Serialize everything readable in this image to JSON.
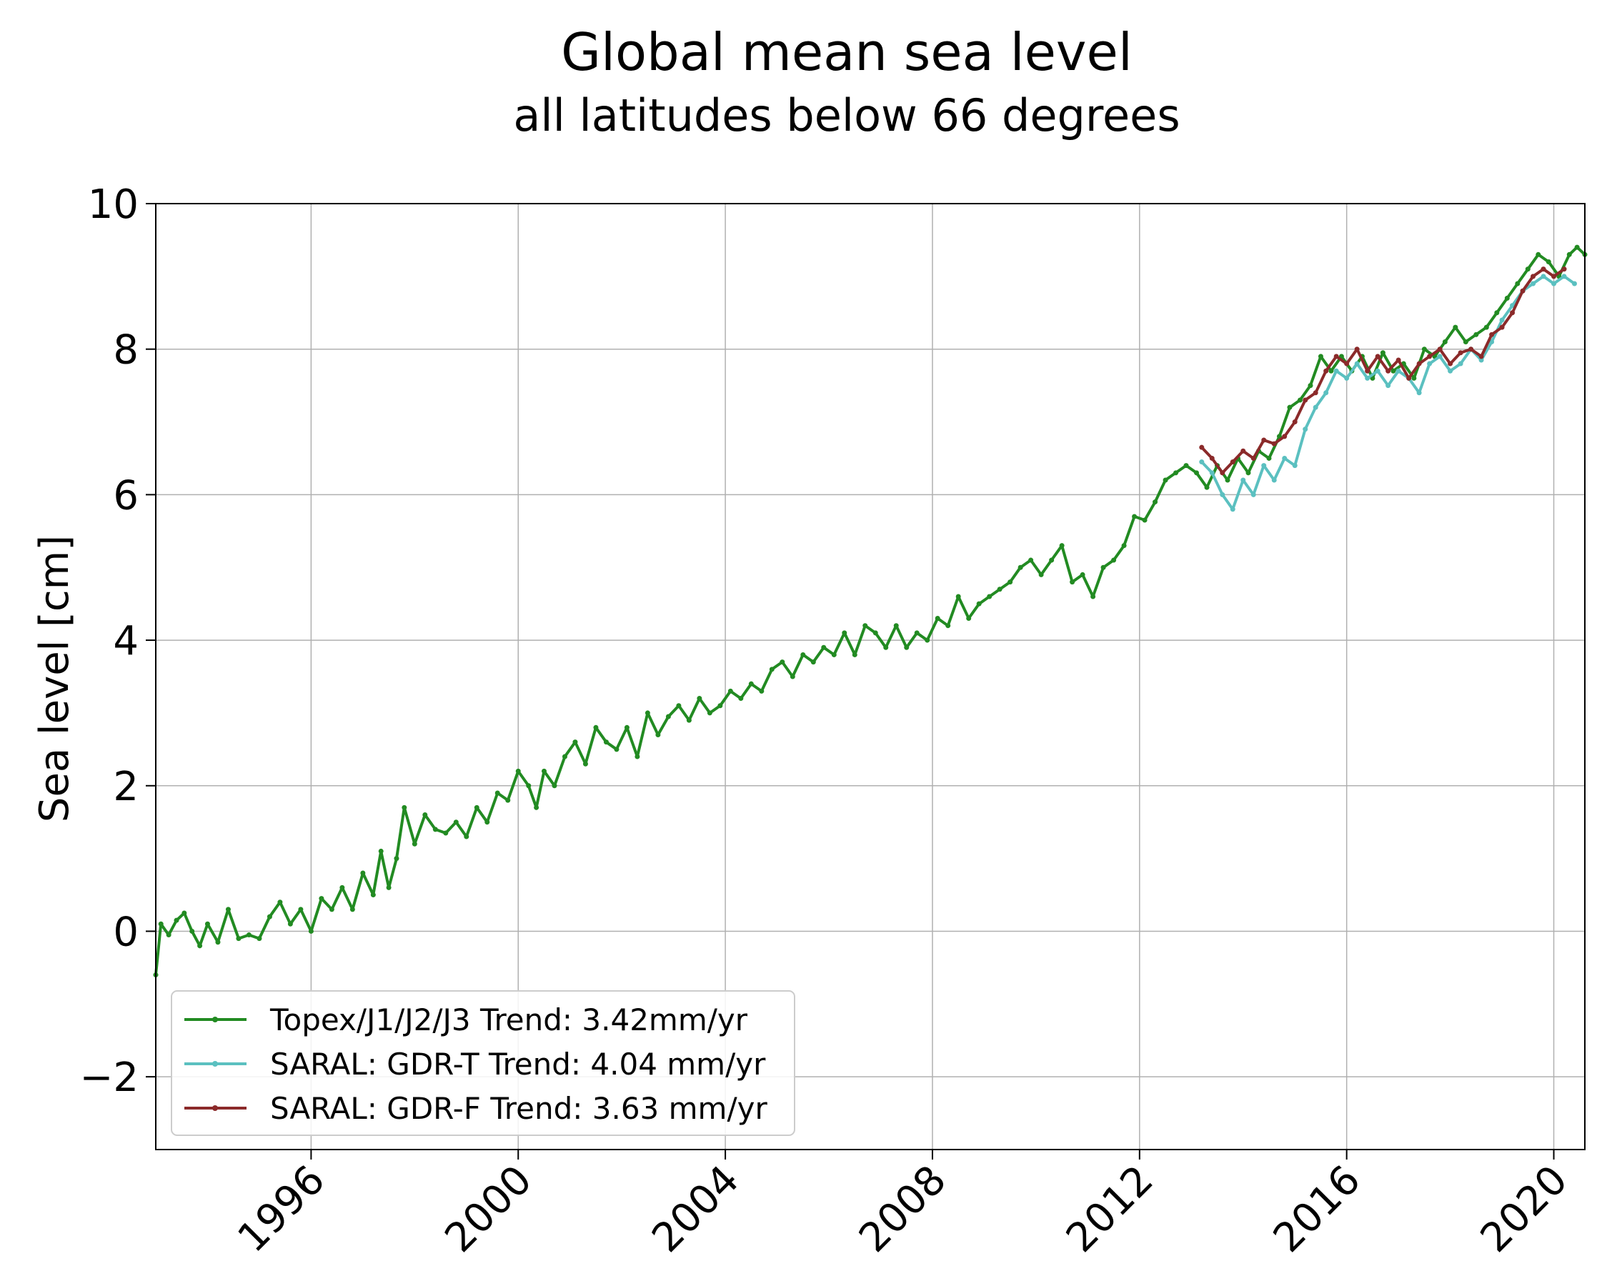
{
  "chart_data": {
    "type": "line",
    "title": "Global mean sea level",
    "subtitle": "all latitudes below 66 degrees",
    "xlabel": "",
    "ylabel": "Sea level [cm]",
    "xlim": [
      1993.0,
      2020.6
    ],
    "ylim": [
      -3,
      10
    ],
    "x_ticks": [
      {
        "value": 1996,
        "label": "1996"
      },
      {
        "value": 2000,
        "label": "2000"
      },
      {
        "value": 2004,
        "label": "2004"
      },
      {
        "value": 2008,
        "label": "2008"
      },
      {
        "value": 2012,
        "label": "2012"
      },
      {
        "value": 2016,
        "label": "2016"
      },
      {
        "value": 2020,
        "label": "2020"
      }
    ],
    "y_ticks": [
      {
        "value": -2,
        "label": "−2"
      },
      {
        "value": 0,
        "label": "0"
      },
      {
        "value": 2,
        "label": "2"
      },
      {
        "value": 4,
        "label": "4"
      },
      {
        "value": 6,
        "label": "6"
      },
      {
        "value": 8,
        "label": "8"
      },
      {
        "value": 10,
        "label": "10"
      }
    ],
    "grid": true,
    "legend_position": "lower-left",
    "series": [
      {
        "name": "Topex/J1/J2/J3 Trend: 3.42mm/yr",
        "color": "#228B22",
        "x": [
          1993.0,
          1993.1,
          1993.25,
          1993.4,
          1993.55,
          1993.7,
          1993.85,
          1994.0,
          1994.2,
          1994.4,
          1994.6,
          1994.8,
          1995.0,
          1995.2,
          1995.4,
          1995.6,
          1995.8,
          1996.0,
          1996.2,
          1996.4,
          1996.6,
          1996.8,
          1997.0,
          1997.2,
          1997.35,
          1997.5,
          1997.65,
          1997.8,
          1998.0,
          1998.2,
          1998.4,
          1998.6,
          1998.8,
          1999.0,
          1999.2,
          1999.4,
          1999.6,
          1999.8,
          2000.0,
          2000.2,
          2000.35,
          2000.5,
          2000.7,
          2000.9,
          2001.1,
          2001.3,
          2001.5,
          2001.7,
          2001.9,
          2002.1,
          2002.3,
          2002.5,
          2002.7,
          2002.9,
          2003.1,
          2003.3,
          2003.5,
          2003.7,
          2003.9,
          2004.1,
          2004.3,
          2004.5,
          2004.7,
          2004.9,
          2005.1,
          2005.3,
          2005.5,
          2005.7,
          2005.9,
          2006.1,
          2006.3,
          2006.5,
          2006.7,
          2006.9,
          2007.1,
          2007.3,
          2007.5,
          2007.7,
          2007.9,
          2008.1,
          2008.3,
          2008.5,
          2008.7,
          2008.9,
          2009.1,
          2009.3,
          2009.5,
          2009.7,
          2009.9,
          2010.1,
          2010.3,
          2010.5,
          2010.7,
          2010.9,
          2011.1,
          2011.3,
          2011.5,
          2011.7,
          2011.9,
          2012.1,
          2012.3,
          2012.5,
          2012.7,
          2012.9,
          2013.1,
          2013.3,
          2013.5,
          2013.7,
          2013.9,
          2014.1,
          2014.3,
          2014.5,
          2014.7,
          2014.9,
          2015.1,
          2015.3,
          2015.5,
          2015.7,
          2015.9,
          2016.1,
          2016.3,
          2016.5,
          2016.7,
          2016.9,
          2017.1,
          2017.3,
          2017.5,
          2017.7,
          2017.9,
          2018.1,
          2018.3,
          2018.5,
          2018.7,
          2018.9,
          2019.1,
          2019.3,
          2019.5,
          2019.7,
          2019.9,
          2020.1,
          2020.3,
          2020.45,
          2020.6
        ],
        "y": [
          -0.6,
          0.1,
          -0.05,
          0.15,
          0.25,
          0.0,
          -0.2,
          0.1,
          -0.15,
          0.3,
          -0.1,
          -0.05,
          -0.1,
          0.2,
          0.4,
          0.1,
          0.3,
          0.0,
          0.45,
          0.3,
          0.6,
          0.3,
          0.8,
          0.5,
          1.1,
          0.6,
          1.0,
          1.7,
          1.2,
          1.6,
          1.4,
          1.35,
          1.5,
          1.3,
          1.7,
          1.5,
          1.9,
          1.8,
          2.2,
          2.0,
          1.7,
          2.2,
          2.0,
          2.4,
          2.6,
          2.3,
          2.8,
          2.6,
          2.5,
          2.8,
          2.4,
          3.0,
          2.7,
          2.95,
          3.1,
          2.9,
          3.2,
          3.0,
          3.1,
          3.3,
          3.2,
          3.4,
          3.3,
          3.6,
          3.7,
          3.5,
          3.8,
          3.7,
          3.9,
          3.8,
          4.1,
          3.8,
          4.2,
          4.1,
          3.9,
          4.2,
          3.9,
          4.1,
          4.0,
          4.3,
          4.2,
          4.6,
          4.3,
          4.5,
          4.6,
          4.7,
          4.8,
          5.0,
          5.1,
          4.9,
          5.1,
          5.3,
          4.8,
          4.9,
          4.6,
          5.0,
          5.1,
          5.3,
          5.7,
          5.65,
          5.9,
          6.2,
          6.3,
          6.4,
          6.3,
          6.1,
          6.4,
          6.2,
          6.5,
          6.3,
          6.6,
          6.5,
          6.8,
          7.2,
          7.3,
          7.5,
          7.9,
          7.7,
          7.9,
          7.7,
          7.9,
          7.6,
          7.95,
          7.7,
          7.8,
          7.6,
          8.0,
          7.9,
          8.1,
          8.3,
          8.1,
          8.2,
          8.3,
          8.5,
          8.7,
          8.9,
          9.1,
          9.3,
          9.2,
          9.0,
          9.3,
          9.4,
          9.3
        ]
      },
      {
        "name": "SARAL: GDR-T Trend: 4.04 mm/yr",
        "color": "#5BC0C0",
        "x": [
          2013.2,
          2013.4,
          2013.6,
          2013.8,
          2014.0,
          2014.2,
          2014.4,
          2014.6,
          2014.8,
          2015.0,
          2015.2,
          2015.4,
          2015.6,
          2015.8,
          2016.0,
          2016.2,
          2016.4,
          2016.6,
          2016.8,
          2017.0,
          2017.2,
          2017.4,
          2017.6,
          2017.8,
          2018.0,
          2018.2,
          2018.4,
          2018.6,
          2018.8,
          2019.0,
          2019.2,
          2019.4,
          2019.6,
          2019.8,
          2020.0,
          2020.2,
          2020.4
        ],
        "y": [
          6.45,
          6.3,
          6.0,
          5.8,
          6.2,
          6.0,
          6.4,
          6.2,
          6.5,
          6.4,
          6.9,
          7.2,
          7.4,
          7.7,
          7.6,
          7.8,
          7.6,
          7.7,
          7.5,
          7.7,
          7.6,
          7.4,
          7.8,
          7.9,
          7.7,
          7.8,
          8.0,
          7.85,
          8.1,
          8.4,
          8.6,
          8.8,
          8.9,
          9.0,
          8.9,
          9.0,
          8.9
        ]
      },
      {
        "name": "SARAL: GDR-F Trend: 3.63 mm/yr",
        "color": "#8B2A2A",
        "x": [
          2013.2,
          2013.4,
          2013.6,
          2013.8,
          2014.0,
          2014.2,
          2014.4,
          2014.6,
          2014.8,
          2015.0,
          2015.2,
          2015.4,
          2015.6,
          2015.8,
          2016.0,
          2016.2,
          2016.4,
          2016.6,
          2016.8,
          2017.0,
          2017.2,
          2017.4,
          2017.6,
          2017.8,
          2018.0,
          2018.2,
          2018.4,
          2018.6,
          2018.8,
          2019.0,
          2019.2,
          2019.4,
          2019.6,
          2019.8,
          2020.0,
          2020.2
        ],
        "y": [
          6.65,
          6.5,
          6.3,
          6.45,
          6.6,
          6.5,
          6.75,
          6.7,
          6.8,
          7.0,
          7.3,
          7.4,
          7.7,
          7.9,
          7.8,
          8.0,
          7.7,
          7.9,
          7.7,
          7.85,
          7.6,
          7.8,
          7.9,
          8.0,
          7.8,
          7.95,
          8.0,
          7.9,
          8.2,
          8.3,
          8.5,
          8.8,
          9.0,
          9.1,
          9.0,
          9.1
        ]
      }
    ]
  }
}
